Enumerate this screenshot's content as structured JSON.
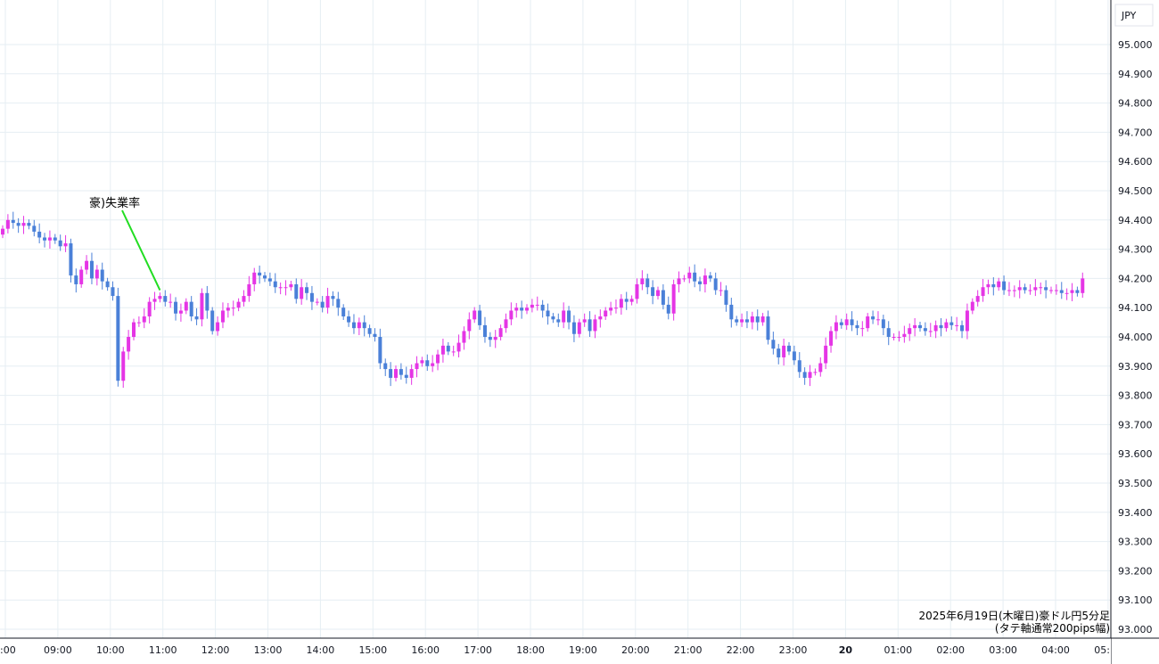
{
  "chart_data": {
    "type": "candlestick",
    "currency_label": "JPY",
    "y_ticks": [
      "95.000",
      "94.900",
      "94.800",
      "94.700",
      "94.600",
      "94.500",
      "94.400",
      "94.300",
      "94.200",
      "94.100",
      "94.000",
      "93.900",
      "93.800",
      "93.700",
      "93.600",
      "93.500",
      "93.400",
      "93.300",
      "93.200",
      "93.100",
      "93.000"
    ],
    "x_ticks": [
      ":00",
      "09:00",
      "10:00",
      "11:00",
      "12:00",
      "13:00",
      "14:00",
      "15:00",
      "16:00",
      "17:00",
      "18:00",
      "19:00",
      "20:00",
      "21:00",
      "22:00",
      "23:00",
      "20",
      "01:00",
      "02:00",
      "03:00",
      "04:00",
      "05:"
    ],
    "ylim": [
      93.0,
      95.0
    ],
    "grid": true,
    "colors": {
      "up": "#e535e5",
      "down": "#4a80d8",
      "grid": "#e6eef3",
      "annotation_line": "#22dd22"
    },
    "annotation": {
      "label": "豪)失業率",
      "bar_index": 30
    },
    "caption_lines": [
      "2025年6月19日(木曜日)豪ドル円5分足",
      "(タテ軸通常200pips幅)"
    ],
    "closes": [
      94.37,
      94.4,
      94.39,
      94.38,
      94.39,
      94.38,
      94.36,
      94.34,
      94.33,
      94.34,
      94.33,
      94.31,
      94.32,
      94.21,
      94.18,
      94.23,
      94.26,
      94.2,
      94.23,
      94.19,
      94.17,
      94.14,
      93.85,
      93.95,
      94.0,
      94.05,
      94.05,
      94.07,
      94.12,
      94.13,
      94.14,
      94.12,
      94.12,
      94.08,
      94.09,
      94.12,
      94.07,
      94.06,
      94.15,
      94.09,
      94.02,
      94.05,
      94.09,
      94.1,
      94.1,
      94.12,
      94.14,
      94.18,
      94.22,
      94.21,
      94.2,
      94.19,
      94.17,
      94.17,
      94.17,
      94.18,
      94.13,
      94.17,
      94.15,
      94.12,
      94.12,
      94.1,
      94.14,
      94.13,
      94.1,
      94.07,
      94.05,
      94.03,
      94.05,
      94.03,
      94.01,
      94.0,
      93.91,
      93.89,
      93.86,
      93.89,
      93.87,
      93.86,
      93.89,
      93.91,
      93.92,
      93.9,
      93.91,
      93.94,
      93.97,
      93.95,
      93.95,
      93.98,
      94.02,
      94.06,
      94.09,
      94.04,
      94.0,
      93.99,
      94.0,
      94.03,
      94.06,
      94.09,
      94.1,
      94.09,
      94.1,
      94.11,
      94.11,
      94.09,
      94.07,
      94.06,
      94.05,
      94.09,
      94.05,
      94.01,
      94.05,
      94.06,
      94.02,
      94.06,
      94.07,
      94.09,
      94.1,
      94.1,
      94.13,
      94.12,
      94.13,
      94.18,
      94.2,
      94.17,
      94.14,
      94.16,
      94.11,
      94.08,
      94.18,
      94.2,
      94.2,
      94.22,
      94.19,
      94.18,
      94.21,
      94.2,
      94.16,
      94.16,
      94.11,
      94.06,
      94.05,
      94.06,
      94.05,
      94.07,
      94.05,
      94.07,
      93.99,
      93.96,
      93.93,
      93.97,
      93.95,
      93.92,
      93.88,
      93.86,
      93.88,
      93.88,
      93.91,
      93.97,
      94.02,
      94.05,
      94.04,
      94.06,
      94.04,
      94.03,
      94.03,
      94.07,
      94.06,
      94.06,
      94.03,
      94.0,
      94.0,
      94.0,
      94.01,
      94.03,
      94.04,
      94.03,
      94.02,
      94.02,
      94.04,
      94.03,
      94.05,
      94.04,
      94.04,
      94.02,
      94.09,
      94.12,
      94.14,
      94.17,
      94.18,
      94.17,
      94.19,
      94.16,
      94.16,
      94.16,
      94.17,
      94.16,
      94.16,
      94.17,
      94.17,
      94.16,
      94.16,
      94.16,
      94.15,
      94.15,
      94.16,
      94.15,
      94.2
    ],
    "opens": [
      94.35,
      94.37,
      94.4,
      94.39,
      94.38,
      94.39,
      94.38,
      94.36,
      94.34,
      94.33,
      94.34,
      94.33,
      94.31,
      94.32,
      94.21,
      94.18,
      94.23,
      94.26,
      94.2,
      94.23,
      94.19,
      94.17,
      94.14,
      93.85,
      93.95,
      94.0,
      94.05,
      94.05,
      94.07,
      94.12,
      94.13,
      94.14,
      94.12,
      94.12,
      94.08,
      94.09,
      94.12,
      94.07,
      94.06,
      94.15,
      94.09,
      94.02,
      94.05,
      94.09,
      94.1,
      94.1,
      94.12,
      94.14,
      94.18,
      94.22,
      94.21,
      94.2,
      94.19,
      94.17,
      94.17,
      94.17,
      94.18,
      94.13,
      94.17,
      94.15,
      94.12,
      94.12,
      94.1,
      94.14,
      94.13,
      94.1,
      94.07,
      94.05,
      94.03,
      94.05,
      94.03,
      94.01,
      94.0,
      93.91,
      93.89,
      93.86,
      93.89,
      93.87,
      93.86,
      93.89,
      93.91,
      93.92,
      93.9,
      93.91,
      93.94,
      93.97,
      93.95,
      93.95,
      93.98,
      94.02,
      94.06,
      94.09,
      94.04,
      94.0,
      93.99,
      94.0,
      94.03,
      94.06,
      94.09,
      94.1,
      94.09,
      94.1,
      94.11,
      94.11,
      94.09,
      94.07,
      94.06,
      94.05,
      94.09,
      94.05,
      94.01,
      94.05,
      94.06,
      94.02,
      94.06,
      94.07,
      94.09,
      94.1,
      94.1,
      94.13,
      94.12,
      94.13,
      94.18,
      94.2,
      94.17,
      94.14,
      94.16,
      94.11,
      94.08,
      94.18,
      94.2,
      94.2,
      94.22,
      94.19,
      94.18,
      94.21,
      94.2,
      94.16,
      94.16,
      94.11,
      94.06,
      94.05,
      94.06,
      94.05,
      94.07,
      94.05,
      94.07,
      93.99,
      93.96,
      93.93,
      93.97,
      93.95,
      93.92,
      93.88,
      93.86,
      93.88,
      93.88,
      93.91,
      93.97,
      94.02,
      94.05,
      94.04,
      94.06,
      94.04,
      94.03,
      94.03,
      94.07,
      94.06,
      94.06,
      94.03,
      94.0,
      94.0,
      94.0,
      94.01,
      94.03,
      94.04,
      94.03,
      94.02,
      94.02,
      94.04,
      94.03,
      94.05,
      94.04,
      94.04,
      94.02,
      94.09,
      94.12,
      94.14,
      94.17,
      94.18,
      94.17,
      94.19,
      94.16,
      94.16,
      94.16,
      94.17,
      94.16,
      94.16,
      94.17,
      94.17,
      94.16,
      94.16,
      94.16,
      94.15,
      94.15,
      94.16,
      94.15
    ]
  }
}
